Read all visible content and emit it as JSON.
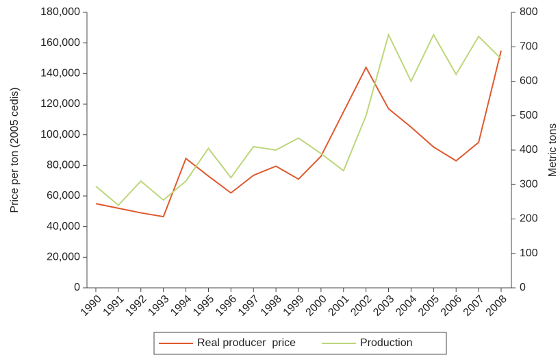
{
  "chart_data": {
    "type": "line",
    "categories": [
      "1990",
      "1991",
      "1992",
      "1993",
      "1994",
      "1995",
      "1996",
      "1997",
      "1998",
      "1999",
      "2000",
      "2001",
      "2002",
      "2003",
      "2004",
      "2005",
      "2006",
      "2007",
      "2008"
    ],
    "ylabel": "Price per ton (2005 cedis)",
    "y2label": "Metric tons",
    "ylim": [
      0,
      180000
    ],
    "yticks": [
      0,
      {
        "value": 20000,
        "label": "20,000"
      },
      {
        "value": 40000,
        "label": "40,000"
      },
      {
        "value": 60000,
        "label": "60,000"
      },
      {
        "value": 80000,
        "label": "80,000"
      },
      {
        "value": 100000,
        "label": "100,000"
      },
      {
        "value": 120000,
        "label": "120,000"
      },
      {
        "value": 140000,
        "label": "140,000"
      },
      {
        "value": 160000,
        "label": "160,000"
      },
      {
        "value": 180000,
        "label": "180,000"
      }
    ],
    "y2lim": [
      0,
      800
    ],
    "y2ticks": [
      0,
      100,
      200,
      300,
      400,
      500,
      600,
      700,
      800
    ],
    "legend": "bottom",
    "series": [
      {
        "name": "Real producer  price",
        "color": "#e0582e",
        "values": [
          55000,
          52000,
          49000,
          46500,
          84500,
          73000,
          62000,
          73500,
          79500,
          71000,
          86000,
          115000,
          144000,
          117000,
          105000,
          92000,
          83000,
          95000,
          155000
        ]
      },
      {
        "name": "Production",
        "color": "#bcd67a",
        "axis": "y2",
        "values": [
          295,
          240,
          310,
          255,
          310,
          405,
          320,
          410,
          400,
          435,
          390,
          340,
          500,
          735,
          600,
          735,
          620,
          730,
          665
        ]
      }
    ]
  }
}
